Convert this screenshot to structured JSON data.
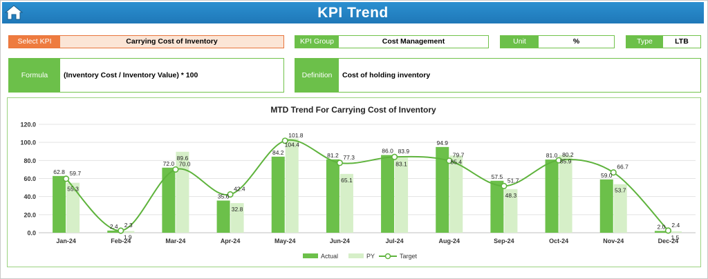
{
  "header": {
    "title": "KPI Trend"
  },
  "selectors": {
    "select_kpi_label": "Select KPI",
    "select_kpi_value": "Carrying Cost of Inventory",
    "kpi_group_label": "KPI Group",
    "kpi_group_value": "Cost Management",
    "unit_label": "Unit",
    "unit_value": "%",
    "type_label": "Type",
    "type_value": "LTB"
  },
  "info": {
    "formula_label": "Formula",
    "formula_value": "(Inventory Cost / Inventory Value) * 100",
    "definition_label": "Definition",
    "definition_value": "Cost of holding inventory"
  },
  "colors": {
    "actual": "#6cc04a",
    "py": "#d6efc8",
    "target": "#5eb33c",
    "header": "#1f78b8",
    "select": "#ee7b3f"
  },
  "chart_data": {
    "type": "bar",
    "title": "MTD Trend For Carrying Cost of Inventory",
    "categories": [
      "Jan-24",
      "Feb-24",
      "Mar-24",
      "Apr-24",
      "May-24",
      "Jun-24",
      "Jul-24",
      "Aug-24",
      "Sep-24",
      "Oct-24",
      "Nov-24",
      "Dec-24"
    ],
    "series": [
      {
        "name": "Actual",
        "type": "bar",
        "values": [
          62.8,
          2.4,
          72.0,
          35.6,
          84.2,
          81.2,
          86.0,
          94.9,
          57.5,
          81.0,
          59.0,
          2.0
        ]
      },
      {
        "name": "PY",
        "type": "bar",
        "values": [
          55.3,
          1.9,
          89.6,
          32.8,
          104.4,
          65.1,
          83.1,
          85.4,
          48.3,
          85.9,
          53.7,
          1.5
        ]
      },
      {
        "name": "Target",
        "type": "line",
        "values": [
          59.7,
          2.3,
          70.0,
          42.4,
          101.8,
          77.3,
          83.9,
          79.7,
          51.7,
          80.2,
          66.7,
          2.4
        ]
      }
    ],
    "ylim": [
      0,
      120
    ],
    "yticks": [
      "0.0",
      "20.0",
      "40.0",
      "60.0",
      "80.0",
      "100.0",
      "120.0"
    ],
    "grid": true,
    "legend": "bottom"
  }
}
